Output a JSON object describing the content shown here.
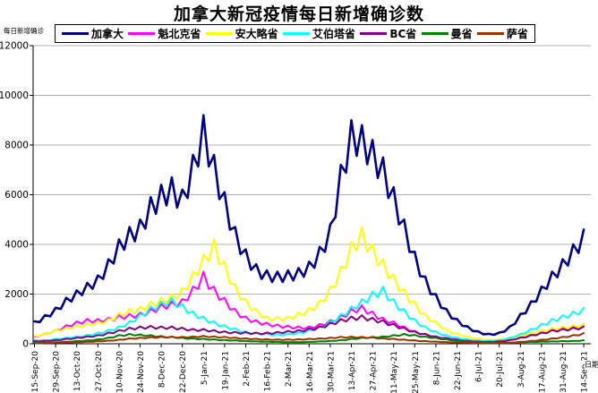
{
  "title": "加拿大新冠疫情每日新增确诊数",
  "y_axis_title": "每日新增确诊",
  "x_axis_title": "日期",
  "legend": [
    {
      "label": "加拿大",
      "color": "#000080"
    },
    {
      "label": "魁北克省",
      "color": "#FF00FF"
    },
    {
      "label": "安大略省",
      "color": "#FFFF00"
    },
    {
      "label": "艾伯塔省",
      "color": "#00FFFF"
    },
    {
      "label": "BC省",
      "color": "#800080"
    },
    {
      "label": "曼省",
      "color": "#008000"
    },
    {
      "label": "萨省",
      "color": "#993300"
    }
  ],
  "chart_data": {
    "type": "line",
    "title": "加拿大新冠疫情每日新增确诊数",
    "xlabel": "日期",
    "ylabel": "每日新增确诊",
    "ylim": [
      0,
      12000
    ],
    "y_ticks": [
      0,
      2000,
      4000,
      6000,
      8000,
      10000,
      12000
    ],
    "grid": "horizontal",
    "grid_color": "#b3b3b3",
    "legend_position": "top",
    "x_tick_labels": [
      "15-Sep-20",
      "29-Sep-20",
      "13-Oct-20",
      "27-Oct-20",
      "10-Nov-20",
      "24-Nov-20",
      "8-Dec-20",
      "22-Dec-20",
      "5-Jan-21",
      "19-Jan-21",
      "2-Feb-21",
      "16-Feb-21",
      "2-Mar-21",
      "16-Mar-21",
      "30-Mar-21",
      "13-Apr-21",
      "27-Apr-21",
      "11-May-21",
      "25-May-21",
      "8-Jun-21",
      "22-Jun-21",
      "6-Jul-21",
      "20-Jul-21",
      "3-Aug-21",
      "17-Aug-21",
      "31-Aug-21",
      "14-Sep-21"
    ],
    "x_start": "15-Sep-20",
    "x_end": "14-Sep-21",
    "sampling": "weekly (values estimated from plot, 53 points per series)",
    "weekly_dip_ratio": 0.85,
    "series": [
      {
        "name": "加拿大",
        "color": "#000080",
        "values": [
          900,
          1150,
          1450,
          1850,
          2150,
          2450,
          2750,
          3400,
          4200,
          4700,
          5000,
          5900,
          6400,
          6700,
          6200,
          7600,
          9200,
          7600,
          6100,
          4700,
          3800,
          3200,
          2950,
          2900,
          2950,
          3050,
          3300,
          3900,
          4800,
          7200,
          9000,
          8800,
          8200,
          7500,
          6300,
          5000,
          3700,
          2700,
          2000,
          1400,
          1000,
          700,
          500,
          400,
          450,
          700,
          1200,
          1700,
          2300,
          2900,
          3400,
          4000,
          4600
        ]
      },
      {
        "name": "魁北克省",
        "color": "#FF00FF",
        "values": [
          300,
          420,
          560,
          750,
          900,
          1000,
          1000,
          1050,
          1150,
          1200,
          1250,
          1400,
          1600,
          1700,
          1800,
          2300,
          2900,
          2300,
          1850,
          1400,
          1100,
          950,
          850,
          780,
          730,
          700,
          700,
          800,
          950,
          1150,
          1400,
          1550,
          1300,
          1050,
          900,
          700,
          520,
          400,
          300,
          240,
          190,
          140,
          100,
          80,
          100,
          160,
          260,
          360,
          460,
          560,
          640,
          720,
          800
        ]
      },
      {
        "name": "安大略省",
        "color": "#FFFF00",
        "values": [
          320,
          430,
          560,
          650,
          750,
          820,
          900,
          1000,
          1250,
          1400,
          1500,
          1700,
          1850,
          2000,
          2250,
          2900,
          3600,
          4200,
          3300,
          2400,
          1800,
          1400,
          1100,
          1080,
          1100,
          1250,
          1450,
          1750,
          2300,
          3100,
          4100,
          4700,
          4000,
          3400,
          2800,
          2200,
          1700,
          1200,
          900,
          600,
          420,
          300,
          210,
          170,
          180,
          230,
          350,
          450,
          550,
          650,
          700,
          750,
          800
        ]
      },
      {
        "name": "艾伯塔省",
        "color": "#00FFFF",
        "values": [
          150,
          150,
          200,
          250,
          300,
          360,
          450,
          560,
          700,
          900,
          1200,
          1500,
          1700,
          1850,
          1600,
          1300,
          1100,
          900,
          750,
          620,
          500,
          450,
          410,
          390,
          410,
          460,
          560,
          700,
          900,
          1200,
          1500,
          1800,
          2100,
          2300,
          1800,
          1400,
          1000,
          700,
          500,
          350,
          250,
          180,
          130,
          120,
          150,
          250,
          400,
          600,
          800,
          1000,
          1150,
          1300,
          1450
        ]
      },
      {
        "name": "BC省",
        "color": "#800080",
        "values": [
          100,
          120,
          150,
          200,
          250,
          300,
          350,
          450,
          550,
          650,
          700,
          720,
          700,
          700,
          650,
          600,
          600,
          550,
          500,
          480,
          470,
          450,
          450,
          480,
          520,
          550,
          620,
          700,
          850,
          1000,
          1100,
          1150,
          1050,
          950,
          800,
          650,
          500,
          400,
          300,
          220,
          160,
          120,
          90,
          80,
          100,
          150,
          250,
          350,
          450,
          550,
          600,
          650,
          700
        ]
      },
      {
        "name": "曼省",
        "color": "#008000",
        "values": [
          30,
          40,
          60,
          80,
          110,
          140,
          180,
          250,
          350,
          400,
          380,
          350,
          310,
          280,
          250,
          220,
          200,
          180,
          160,
          140,
          120,
          100,
          90,
          80,
          70,
          70,
          80,
          100,
          120,
          150,
          200,
          250,
          280,
          300,
          350,
          400,
          360,
          300,
          240,
          180,
          130,
          90,
          60,
          40,
          35,
          40,
          60,
          80,
          90,
          100,
          110,
          120,
          140
        ]
      },
      {
        "name": "萨省",
        "color": "#993300",
        "values": [
          20,
          30,
          45,
          55,
          70,
          85,
          105,
          130,
          170,
          220,
          250,
          270,
          280,
          290,
          280,
          300,
          320,
          300,
          280,
          250,
          220,
          200,
          185,
          175,
          175,
          185,
          200,
          220,
          250,
          280,
          290,
          280,
          260,
          230,
          200,
          170,
          140,
          110,
          90,
          70,
          55,
          45,
          35,
          30,
          35,
          50,
          80,
          120,
          165,
          220,
          280,
          350,
          430
        ]
      }
    ]
  }
}
